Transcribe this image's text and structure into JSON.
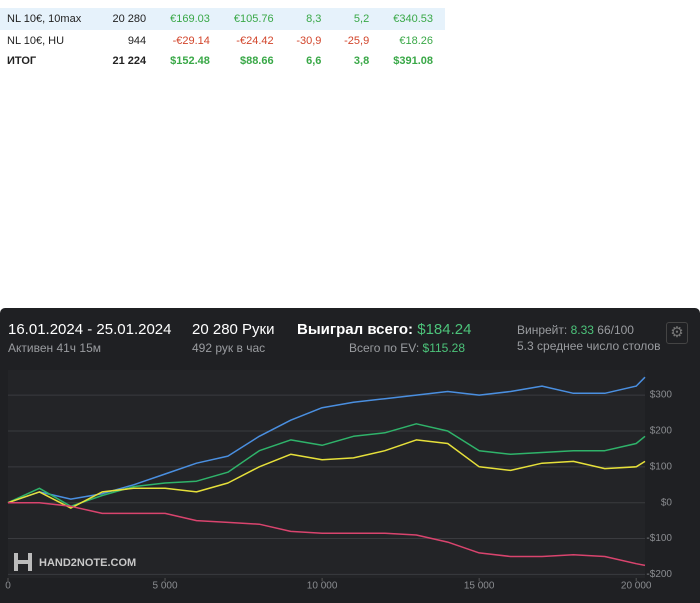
{
  "table": {
    "rows": [
      [
        "NL 10€, 10max",
        "20 280",
        "€169.03",
        "€105.76",
        "8,3",
        "5,2",
        "€340.53"
      ],
      [
        "NL 10€, HU",
        "944",
        "-€29.14",
        "-€24.42",
        "-30,9",
        "-25,9",
        "€18.26"
      ],
      [
        "ИТОГ",
        "21 224",
        "$152.48",
        "$88.66",
        "6,6",
        "3,8",
        "$391.08"
      ]
    ]
  },
  "panel": {
    "date_range": "16.01.2024 - 25.01.2024",
    "active": "Активен 41ч 15м",
    "hands": "20 280 Руки",
    "hands_per_hour": "492 рук в час",
    "won_label": "Выиграл всего:",
    "won_value": "$184.24",
    "ev_label": "Всего по EV:",
    "ev_value": "$115.28",
    "winrate_label": "Винрейт:",
    "winrate_value": "8.33",
    "winrate_unit": "66/100",
    "tables": "5.3 среднее число столов",
    "watermark": "HAND2NOTE.COM"
  },
  "chart_data": {
    "type": "line",
    "x": [
      0,
      1000,
      2000,
      3000,
      4000,
      5000,
      6000,
      7000,
      8000,
      9000,
      10000,
      11000,
      12000,
      13000,
      14000,
      15000,
      16000,
      17000,
      18000,
      19000,
      20000,
      20280
    ],
    "series": [
      {
        "color": "#4a8fe0",
        "values": [
          0,
          30,
          10,
          25,
          50,
          80,
          110,
          130,
          185,
          230,
          265,
          280,
          290,
          300,
          310,
          300,
          310,
          325,
          305,
          305,
          325,
          350
        ]
      },
      {
        "color": "#2fb36a",
        "values": [
          0,
          40,
          -10,
          20,
          45,
          55,
          60,
          85,
          145,
          175,
          160,
          185,
          195,
          220,
          200,
          145,
          135,
          140,
          145,
          145,
          165,
          185
        ]
      },
      {
        "color": "#e6e03a",
        "values": [
          0,
          30,
          -15,
          30,
          40,
          40,
          30,
          55,
          100,
          135,
          120,
          125,
          145,
          175,
          165,
          100,
          90,
          110,
          115,
          95,
          100,
          115
        ]
      },
      {
        "color": "#d9446e",
        "values": [
          0,
          0,
          -10,
          -30,
          -30,
          -30,
          -50,
          -55,
          -60,
          -80,
          -85,
          -85,
          -85,
          -90,
          -110,
          -140,
          -150,
          -150,
          -145,
          -150,
          -170,
          -175
        ]
      }
    ],
    "xlim": [
      0,
      20280
    ],
    "ylim": [
      -210,
      370
    ],
    "xticks": [
      0,
      {
        "value": 5000,
        "label": "5 000"
      },
      {
        "value": 10000,
        "label": "10 000"
      },
      {
        "value": 15000,
        "label": "15 000"
      },
      {
        "value": 20000,
        "label": "20 000"
      }
    ],
    "yticks": [
      {
        "value": -200,
        "label": "-$200"
      },
      {
        "value": -100,
        "label": "-$100"
      },
      {
        "value": 0,
        "label": "$0"
      },
      {
        "value": 100,
        "label": "$100"
      },
      {
        "value": 200,
        "label": "$200"
      },
      {
        "value": 300,
        "label": "$300"
      }
    ],
    "grid": true
  }
}
